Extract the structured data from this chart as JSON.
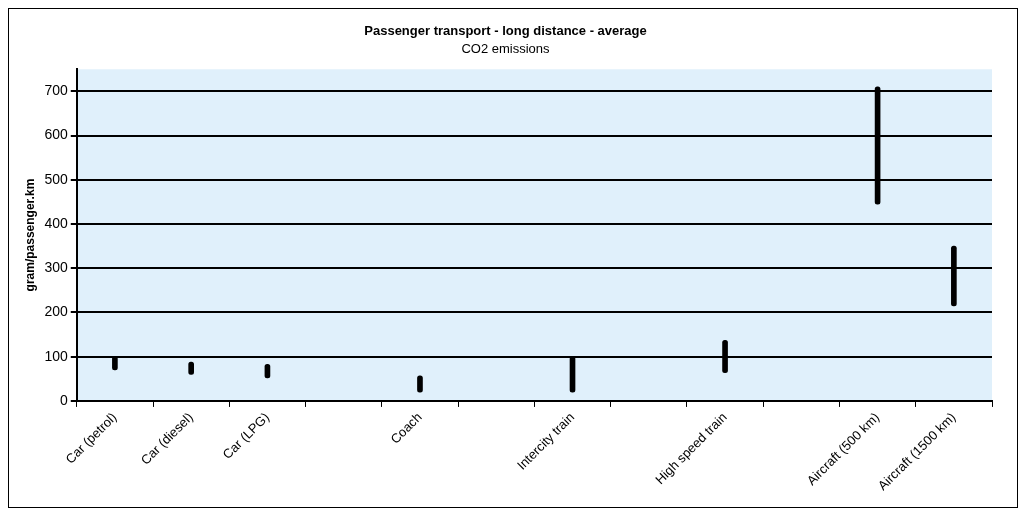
{
  "chart_data": {
    "type": "bar",
    "title": "Passenger transport - long distance - average",
    "subtitle": "CO2 emissions",
    "ylabel": "gram/passenger.km",
    "categories": [
      "Car (petrol)",
      "Car (diesel)",
      "Car (LPG)",
      null,
      "Coach",
      null,
      "Intercity train",
      null,
      "High speed train",
      null,
      "Aircraft (500 km)",
      "Aircraft (1500 km)"
    ],
    "base": [
      70,
      60,
      52,
      null,
      20,
      null,
      20,
      null,
      64,
      null,
      445,
      215
    ],
    "values": [
      30,
      28,
      31,
      null,
      37,
      null,
      80,
      null,
      73,
      null,
      265,
      135
    ],
    "color": "#000000",
    "ylim": [
      0,
      750
    ],
    "yticks": [
      0,
      100,
      200,
      300,
      400,
      500,
      600,
      700
    ],
    "grid": "y"
  }
}
